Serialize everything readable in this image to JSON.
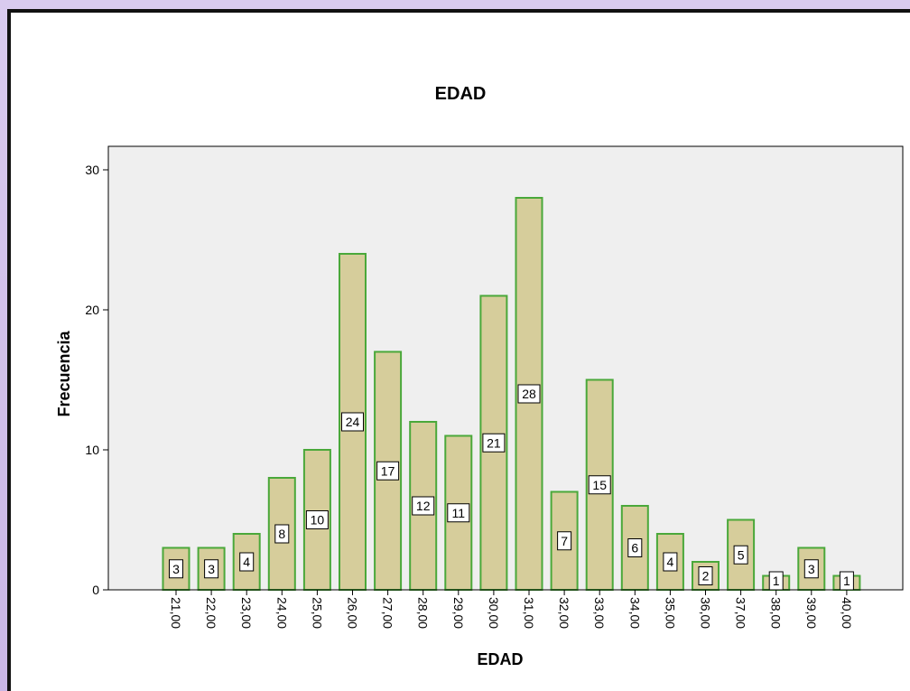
{
  "chart_data": {
    "type": "bar",
    "title": "EDAD",
    "xlabel": "EDAD",
    "ylabel": "Frecuencia",
    "categories": [
      "21,00",
      "22,00",
      "23,00",
      "24,00",
      "25,00",
      "26,00",
      "27,00",
      "28,00",
      "29,00",
      "30,00",
      "31,00",
      "32,00",
      "33,00",
      "34,00",
      "35,00",
      "36,00",
      "37,00",
      "38,00",
      "39,00",
      "40,00"
    ],
    "values": [
      3,
      3,
      4,
      8,
      10,
      24,
      17,
      12,
      11,
      21,
      28,
      7,
      15,
      6,
      4,
      2,
      5,
      1,
      3,
      1
    ],
    "ylim": [
      0,
      30
    ],
    "yticks": [
      0,
      10,
      20,
      30
    ],
    "grid": false,
    "data_labels": true,
    "bar_fill": "#d6cd9b",
    "bar_stroke": "#4aa83a",
    "plot_background": "#efefef"
  }
}
